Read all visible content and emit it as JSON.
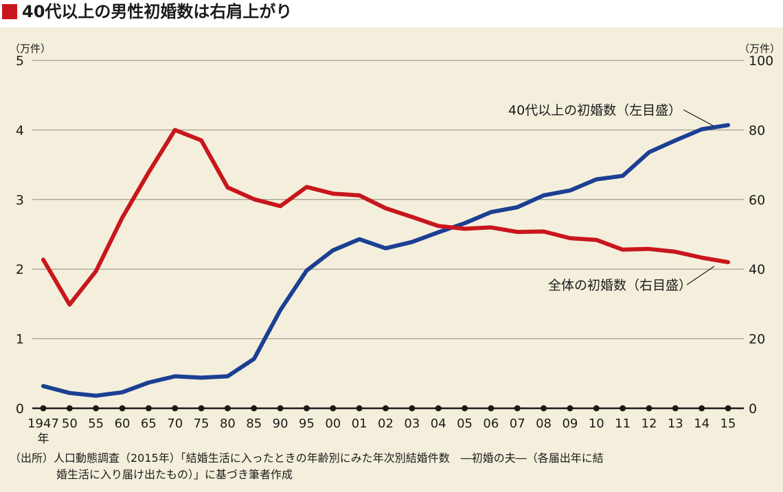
{
  "title": "40代以上の男性初婚数は右肩上がり",
  "source": {
    "line1": "（出所）人口動態調査（2015年）「結婚生活に入ったときの年齢別にみた年次別結婚件数　―初婚の夫―（各届出年に結",
    "line2": "婚生活に入り届け出たもの）」に基づき筆者作成"
  },
  "colors": {
    "accent": "#c8161d",
    "blue_series": "#1b3f93",
    "red_series": "#c8161d",
    "background": "#f4efdc"
  },
  "chart_data": {
    "type": "line",
    "categories": [
      "1947",
      "50",
      "55",
      "60",
      "65",
      "70",
      "75",
      "80",
      "85",
      "90",
      "95",
      "00",
      "01",
      "02",
      "03",
      "04",
      "05",
      "06",
      "07",
      "08",
      "09",
      "10",
      "11",
      "12",
      "13",
      "14",
      "15"
    ],
    "first_category_suffix": "年",
    "left_axis": {
      "unit": "（万件）",
      "range": [
        0,
        5
      ],
      "ticks": [
        "0",
        "1",
        "2",
        "3",
        "4",
        "5"
      ]
    },
    "right_axis": {
      "unit": "（万件）",
      "range": [
        0,
        100
      ],
      "ticks": [
        "0",
        "20",
        "40",
        "60",
        "80",
        "100"
      ]
    },
    "grid": true,
    "series": [
      {
        "name": "40代以上の初婚数（左目盛）",
        "axis": "left",
        "color": "#1b3f93",
        "values": [
          0.32,
          0.22,
          0.18,
          0.23,
          0.37,
          0.46,
          0.44,
          0.46,
          0.71,
          1.41,
          1.98,
          2.27,
          2.43,
          2.3,
          2.39,
          2.53,
          2.66,
          2.82,
          2.89,
          3.06,
          3.13,
          3.29,
          3.34,
          3.68,
          3.85,
          4.01,
          4.07
        ]
      },
      {
        "name": "全体の初婚数（右目盛）",
        "axis": "right",
        "color": "#c8161d",
        "values": [
          42.7,
          29.8,
          39.4,
          54.8,
          67.8,
          80.0,
          77.0,
          63.5,
          60.1,
          58.1,
          63.6,
          61.7,
          61.2,
          57.5,
          55.0,
          52.4,
          51.6,
          52.0,
          50.7,
          50.8,
          48.9,
          48.4,
          45.6,
          45.8,
          45.0,
          43.3,
          42.0
        ]
      }
    ]
  }
}
